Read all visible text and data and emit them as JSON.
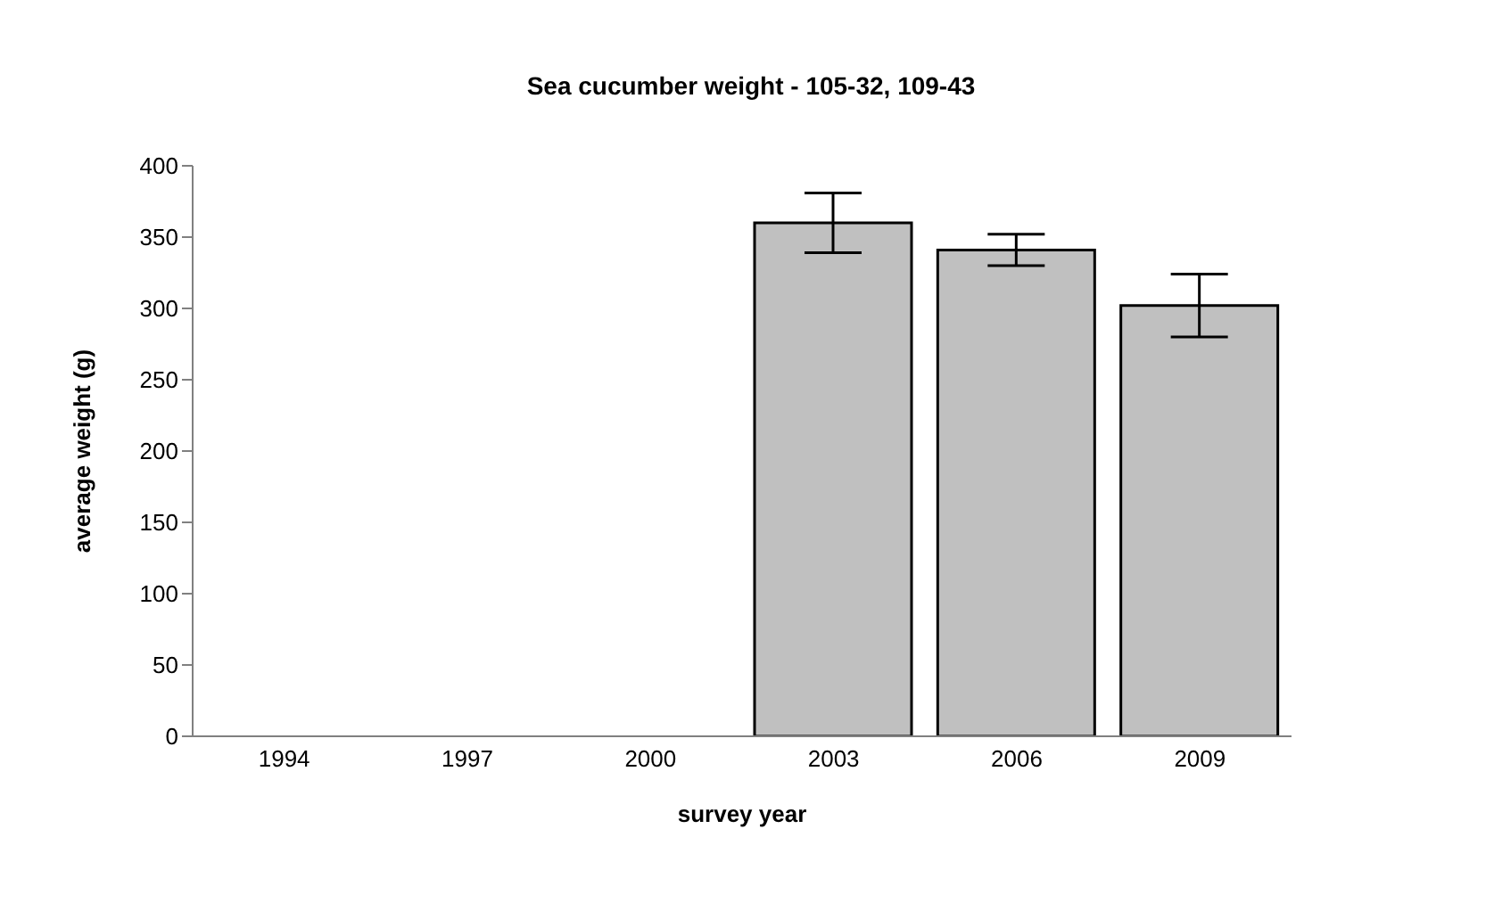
{
  "chart_data": {
    "type": "bar",
    "title": "Sea cucumber weight - 105-32, 109-43",
    "xlabel": "survey year",
    "ylabel": "average weight (g)",
    "categories": [
      "1994",
      "1997",
      "2000",
      "2003",
      "2006",
      "2009"
    ],
    "values": [
      null,
      null,
      null,
      360,
      341,
      302
    ],
    "errors": [
      null,
      null,
      null,
      21,
      11,
      22
    ],
    "color": "#c0c0c0",
    "ylim": [
      0,
      400
    ],
    "yticks": [
      0,
      50,
      100,
      150,
      200,
      250,
      300,
      350,
      400
    ],
    "grid": false
  }
}
